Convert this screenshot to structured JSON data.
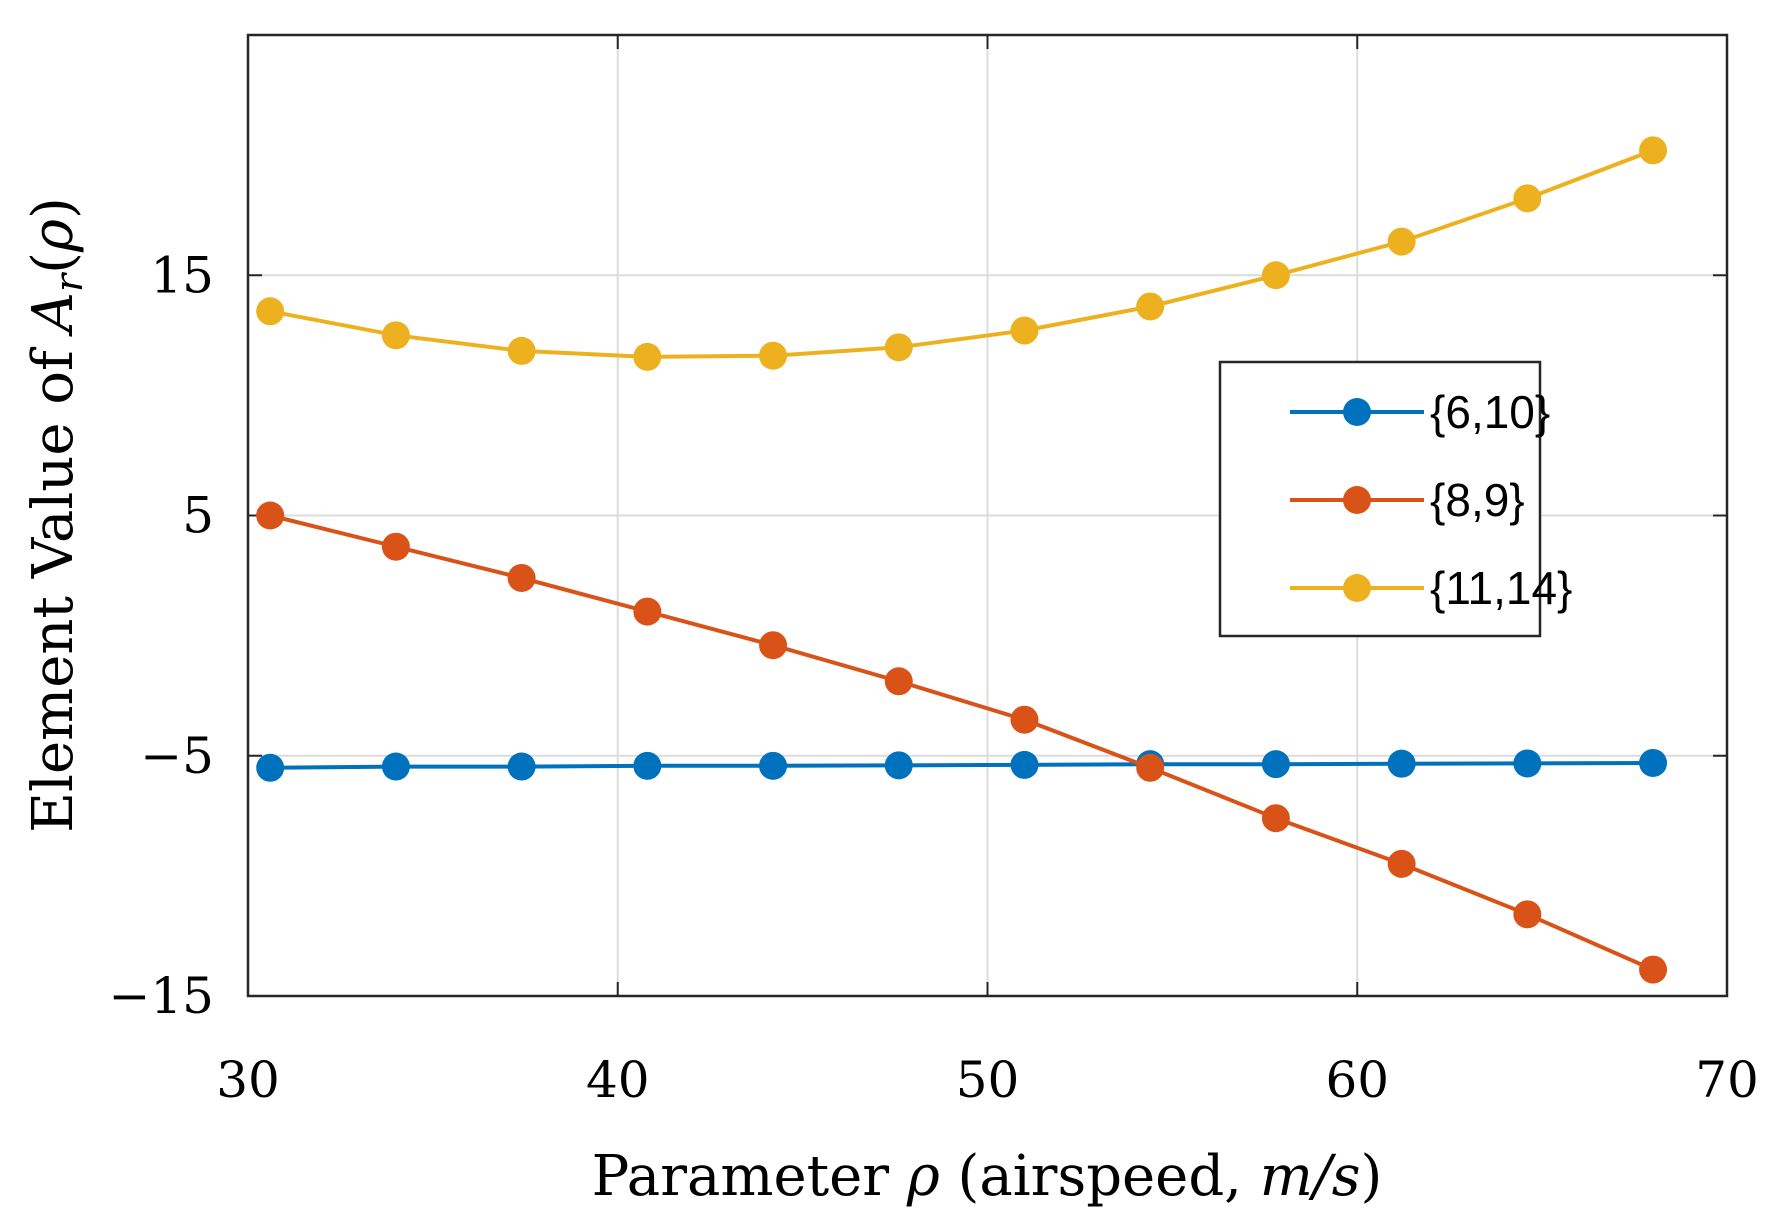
{
  "chart_data": {
    "type": "line",
    "xlabel_main": "Parameter ",
    "xlabel_symbol": "ρ",
    "xlabel_rest": " (airspeed, ",
    "xlabel_unit": "m/s",
    "xlabel_close": ")",
    "ylabel_main": "Element Value of ",
    "ylabel_A": "A",
    "ylabel_sub": "r",
    "ylabel_open": "(",
    "ylabel_symbol": "ρ",
    "ylabel_close": ")",
    "xlim": [
      30,
      70
    ],
    "ylim": [
      -15,
      25
    ],
    "xticks": [
      30,
      40,
      50,
      60,
      70
    ],
    "xtick_labels": [
      "30",
      "40",
      "50",
      "60",
      "70"
    ],
    "yticks": [
      -15,
      -5,
      5,
      15
    ],
    "ytick_labels": [
      "−15",
      "−5",
      "5",
      "15"
    ],
    "grid": true,
    "legend_position": "right",
    "x": [
      30.6,
      34.0,
      37.4,
      40.8,
      44.2,
      47.6,
      51.0,
      54.4,
      57.8,
      61.2,
      64.6,
      68.0
    ],
    "series": [
      {
        "name": "{6,10}",
        "color": "#0072BD",
        "values": [
          -5.5,
          -5.45,
          -5.45,
          -5.42,
          -5.42,
          -5.4,
          -5.38,
          -5.35,
          -5.35,
          -5.33,
          -5.32,
          -5.3
        ]
      },
      {
        "name": "{8,9}",
        "color": "#D95319",
        "values": [
          5.0,
          3.7,
          2.4,
          1.0,
          -0.4,
          -1.9,
          -3.5,
          -5.5,
          -7.6,
          -9.5,
          -11.6,
          -13.9
        ]
      },
      {
        "name": "{11,14}",
        "color": "#EDB120",
        "values": [
          13.5,
          12.5,
          11.85,
          11.6,
          11.65,
          12.0,
          12.7,
          13.7,
          15.0,
          16.4,
          18.2,
          20.2
        ]
      }
    ]
  }
}
